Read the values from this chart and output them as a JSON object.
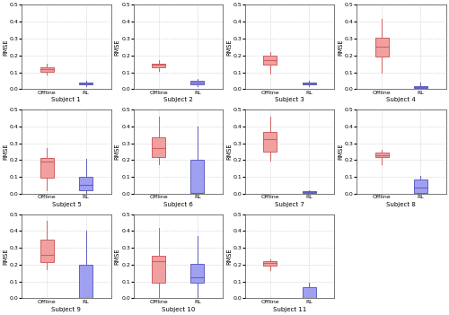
{
  "subjects": [
    1,
    2,
    3,
    4,
    5,
    6,
    7,
    8,
    9,
    10,
    11
  ],
  "ylim": [
    0,
    0.5
  ],
  "yticks": [
    0.0,
    0.1,
    0.2,
    0.3,
    0.4,
    0.5
  ],
  "offline_color": "#D06060",
  "rl_color": "#6060C0",
  "offline_face": "#F0A0A0",
  "rl_face": "#A0A0F0",
  "ylabel": "RMSE",
  "xtick_labels": [
    "Offline",
    "RL"
  ],
  "box_data": {
    "1": {
      "offline": [
        0.085,
        0.105,
        0.12,
        0.132,
        0.152
      ],
      "rl": [
        0.018,
        0.028,
        0.033,
        0.04,
        0.05
      ]
    },
    "2": {
      "offline": [
        0.11,
        0.132,
        0.143,
        0.153,
        0.17
      ],
      "rl": [
        0.02,
        0.03,
        0.038,
        0.048,
        0.06
      ]
    },
    "3": {
      "offline": [
        0.092,
        0.148,
        0.172,
        0.198,
        0.22
      ],
      "rl": [
        0.016,
        0.026,
        0.032,
        0.038,
        0.048
      ]
    },
    "4": {
      "offline": [
        0.095,
        0.195,
        0.25,
        0.305,
        0.415
      ],
      "rl": [
        0.0,
        0.007,
        0.012,
        0.018,
        0.038
      ]
    },
    "5": {
      "offline": [
        0.018,
        0.095,
        0.19,
        0.21,
        0.27
      ],
      "rl": [
        0.0,
        0.018,
        0.055,
        0.1,
        0.205
      ]
    },
    "6": {
      "offline": [
        0.175,
        0.218,
        0.272,
        0.335,
        0.46
      ],
      "rl": [
        0.0,
        0.002,
        0.005,
        0.2,
        0.4
      ]
    },
    "7": {
      "offline": [
        0.195,
        0.248,
        0.325,
        0.368,
        0.46
      ],
      "rl": [
        0.0,
        0.005,
        0.01,
        0.015,
        0.022
      ]
    },
    "8": {
      "offline": [
        0.175,
        0.218,
        0.23,
        0.242,
        0.26
      ],
      "rl": [
        0.0,
        0.005,
        0.035,
        0.085,
        0.105
      ]
    },
    "9": {
      "offline": [
        0.175,
        0.215,
        0.258,
        0.348,
        0.458
      ],
      "rl": [
        0.0,
        0.0,
        0.0,
        0.2,
        0.4
      ]
    },
    "10": {
      "offline": [
        0.002,
        0.092,
        0.22,
        0.25,
        0.415
      ],
      "rl": [
        0.002,
        0.092,
        0.122,
        0.202,
        0.372
      ]
    },
    "11": {
      "offline": [
        0.165,
        0.195,
        0.208,
        0.218,
        0.23
      ],
      "rl": [
        0.0,
        0.0,
        0.0,
        0.065,
        0.095
      ]
    }
  },
  "background_color": "#ffffff",
  "grid_color": "#bbbbbb"
}
